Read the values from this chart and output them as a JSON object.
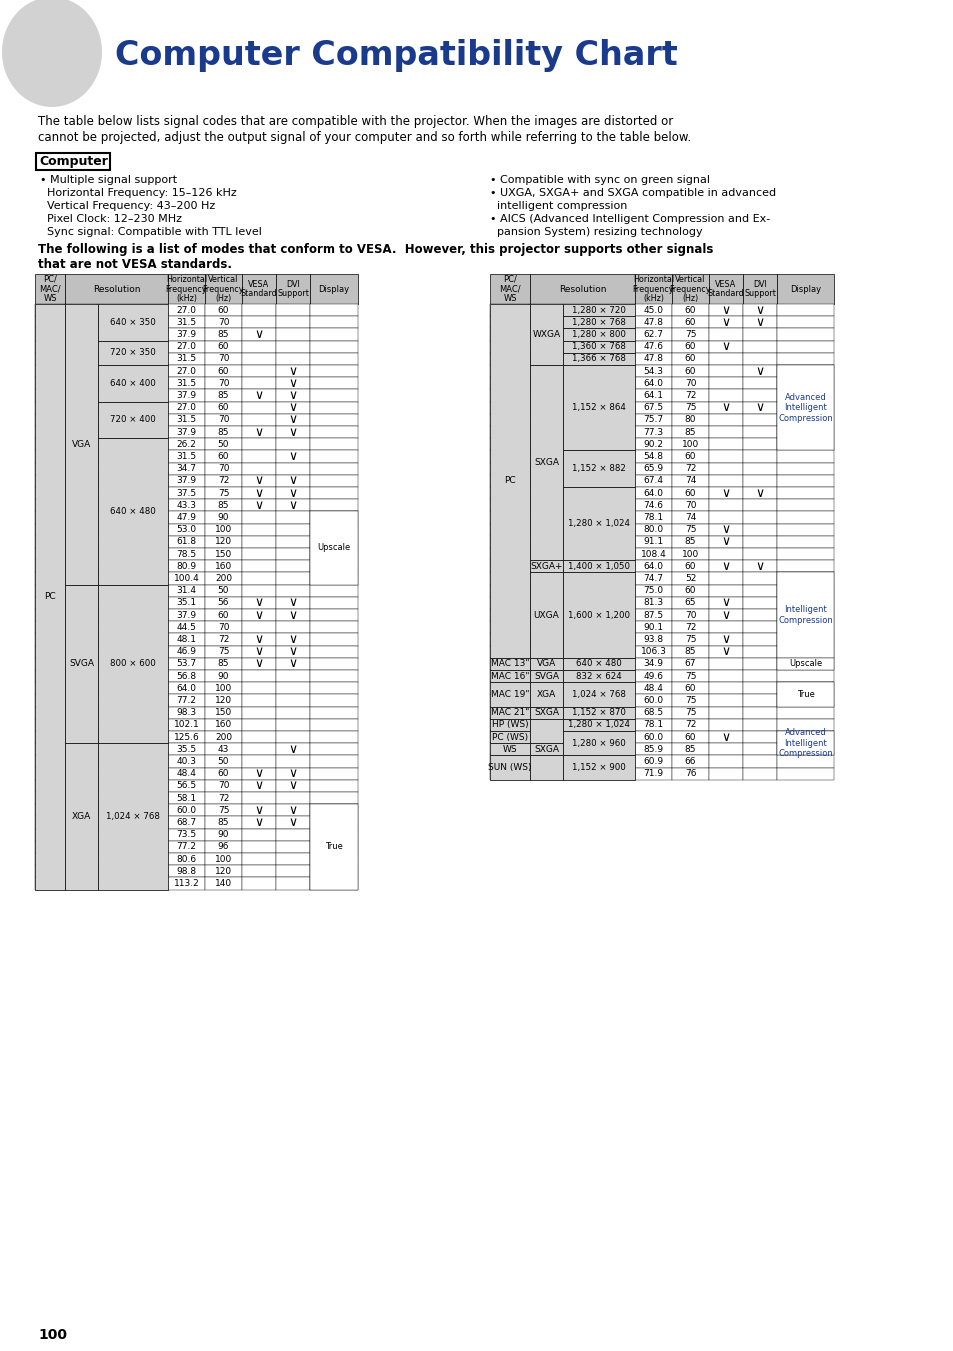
{
  "title": "Computer Compatibility Chart",
  "title_color": "#1a3a8c",
  "intro_text1": "The table below lists signal codes that are compatible with the projector. When the images are distorted or",
  "intro_text2": "cannot be projected, adjust the output signal of your computer and so forth while referring to the table below.",
  "computer_label": "Computer",
  "bullet_left": [
    "• Multiple signal support",
    "  Horizontal Frequency: 15–126 kHz",
    "  Vertical Frequency: 43–200 Hz",
    "  Pixel Clock: 12–230 MHz",
    "  Sync signal: Compatible with TTL level"
  ],
  "bullet_right": [
    "• Compatible with sync on green signal",
    "• UXGA, SXGA+ and SXGA compatible in advanced",
    "  intelligent compression",
    "• AICS (Advanced Intelligent Compression and Ex-",
    "  pansion System) resizing technology"
  ],
  "vesa_note1": "The following is a list of modes that conform to VESA.  However, this projector supports other signals",
  "vesa_note2": "that are not VESA standards.",
  "page_num": "100",
  "header_bg": "#c0c0c0",
  "gray_bg": "#d8d8d8",
  "check": "✓",
  "left_rows": [
    [
      "PC",
      "VGA",
      "640 × 350",
      "27.0",
      "60",
      "",
      ""
    ],
    [
      "PC",
      "VGA",
      "640 × 350",
      "31.5",
      "70",
      "",
      ""
    ],
    [
      "PC",
      "VGA",
      "640 × 350",
      "37.9",
      "85",
      "V",
      ""
    ],
    [
      "PC",
      "VGA",
      "720 × 350",
      "27.0",
      "60",
      "",
      ""
    ],
    [
      "PC",
      "VGA",
      "720 × 350",
      "31.5",
      "70",
      "",
      ""
    ],
    [
      "PC",
      "VGA",
      "640 × 400",
      "27.0",
      "60",
      "",
      "V"
    ],
    [
      "PC",
      "VGA",
      "640 × 400",
      "31.5",
      "70",
      "",
      "V"
    ],
    [
      "PC",
      "VGA",
      "640 × 400",
      "37.9",
      "85",
      "V",
      "V"
    ],
    [
      "PC",
      "VGA",
      "720 × 400",
      "27.0",
      "60",
      "",
      "V"
    ],
    [
      "PC",
      "VGA",
      "720 × 400",
      "31.5",
      "70",
      "",
      "V"
    ],
    [
      "PC",
      "VGA",
      "720 × 400",
      "37.9",
      "85",
      "V",
      "V"
    ],
    [
      "PC",
      "VGA",
      "640 × 480",
      "26.2",
      "50",
      "",
      ""
    ],
    [
      "PC",
      "VGA",
      "640 × 480",
      "31.5",
      "60",
      "",
      "V"
    ],
    [
      "PC",
      "VGA",
      "640 × 480",
      "34.7",
      "70",
      "",
      ""
    ],
    [
      "PC",
      "VGA",
      "640 × 480",
      "37.9",
      "72",
      "V",
      "V"
    ],
    [
      "PC",
      "VGA",
      "640 × 480",
      "37.5",
      "75",
      "V",
      "V"
    ],
    [
      "PC",
      "VGA",
      "640 × 480",
      "43.3",
      "85",
      "V",
      "V"
    ],
    [
      "PC",
      "VGA",
      "640 × 480",
      "47.9",
      "90",
      "",
      ""
    ],
    [
      "PC",
      "VGA",
      "640 × 480",
      "53.0",
      "100",
      "",
      ""
    ],
    [
      "PC",
      "VGA",
      "640 × 480",
      "61.8",
      "120",
      "",
      ""
    ],
    [
      "PC",
      "VGA",
      "640 × 480",
      "78.5",
      "150",
      "",
      ""
    ],
    [
      "PC",
      "VGA",
      "640 × 480",
      "80.9",
      "160",
      "",
      ""
    ],
    [
      "PC",
      "VGA",
      "640 × 480",
      "100.4",
      "200",
      "",
      ""
    ],
    [
      "PC",
      "SVGA",
      "800 × 600",
      "31.4",
      "50",
      "",
      ""
    ],
    [
      "PC",
      "SVGA",
      "800 × 600",
      "35.1",
      "56",
      "V",
      "V"
    ],
    [
      "PC",
      "SVGA",
      "800 × 600",
      "37.9",
      "60",
      "V",
      "V"
    ],
    [
      "PC",
      "SVGA",
      "800 × 600",
      "44.5",
      "70",
      "",
      ""
    ],
    [
      "PC",
      "SVGA",
      "800 × 600",
      "48.1",
      "72",
      "V",
      "V"
    ],
    [
      "PC",
      "SVGA",
      "800 × 600",
      "46.9",
      "75",
      "V",
      "V"
    ],
    [
      "PC",
      "SVGA",
      "800 × 600",
      "53.7",
      "85",
      "V",
      "V"
    ],
    [
      "PC",
      "SVGA",
      "800 × 600",
      "56.8",
      "90",
      "",
      ""
    ],
    [
      "PC",
      "SVGA",
      "800 × 600",
      "64.0",
      "100",
      "",
      ""
    ],
    [
      "PC",
      "SVGA",
      "800 × 600",
      "77.2",
      "120",
      "",
      ""
    ],
    [
      "PC",
      "SVGA",
      "800 × 600",
      "98.3",
      "150",
      "",
      ""
    ],
    [
      "PC",
      "SVGA",
      "800 × 600",
      "102.1",
      "160",
      "",
      ""
    ],
    [
      "PC",
      "SVGA",
      "800 × 600",
      "125.6",
      "200",
      "",
      ""
    ],
    [
      "PC",
      "XGA",
      "1,024 × 768",
      "35.5",
      "43",
      "",
      "V"
    ],
    [
      "PC",
      "XGA",
      "1,024 × 768",
      "40.3",
      "50",
      "",
      ""
    ],
    [
      "PC",
      "XGA",
      "1,024 × 768",
      "48.4",
      "60",
      "V",
      "V"
    ],
    [
      "PC",
      "XGA",
      "1,024 × 768",
      "56.5",
      "70",
      "V",
      "V"
    ],
    [
      "PC",
      "XGA",
      "1,024 × 768",
      "58.1",
      "72",
      "",
      ""
    ],
    [
      "PC",
      "XGA",
      "1,024 × 768",
      "60.0",
      "75",
      "V",
      "V"
    ],
    [
      "PC",
      "XGA",
      "1,024 × 768",
      "68.7",
      "85",
      "V",
      "V"
    ],
    [
      "PC",
      "XGA",
      "1,024 × 768",
      "73.5",
      "90",
      "",
      ""
    ],
    [
      "PC",
      "XGA",
      "1,024 × 768",
      "77.2",
      "96",
      "",
      ""
    ],
    [
      "PC",
      "XGA",
      "1,024 × 768",
      "80.6",
      "100",
      "",
      ""
    ],
    [
      "PC",
      "XGA",
      "1,024 × 768",
      "98.8",
      "120",
      "",
      ""
    ],
    [
      "PC",
      "XGA",
      "1,024 × 768",
      "113.2",
      "140",
      "",
      ""
    ]
  ],
  "left_display": {
    "17": "Upscale",
    "41": "True"
  },
  "right_rows": [
    [
      "PC",
      "WXGA",
      "1,280 × 720",
      "45.0",
      "60",
      "V",
      "V"
    ],
    [
      "PC",
      "WXGA",
      "1,280 × 768",
      "47.8",
      "60",
      "V",
      "V"
    ],
    [
      "PC",
      "WXGA",
      "1,280 × 800",
      "62.7",
      "75",
      "",
      ""
    ],
    [
      "PC",
      "WXGA",
      "1,360 × 768",
      "47.6",
      "60",
      "V",
      ""
    ],
    [
      "PC",
      "WXGA",
      "1,366 × 768",
      "47.8",
      "60",
      "",
      ""
    ],
    [
      "PC",
      "SXGA",
      "1,152 × 864",
      "54.3",
      "60",
      "",
      "V"
    ],
    [
      "PC",
      "SXGA",
      "1,152 × 864",
      "64.0",
      "70",
      "",
      ""
    ],
    [
      "PC",
      "SXGA",
      "1,152 × 864",
      "64.1",
      "72",
      "",
      ""
    ],
    [
      "PC",
      "SXGA",
      "1,152 × 864",
      "67.5",
      "75",
      "V",
      "V"
    ],
    [
      "PC",
      "SXGA",
      "1,152 × 864",
      "75.7",
      "80",
      "",
      ""
    ],
    [
      "PC",
      "SXGA",
      "1,152 × 864",
      "77.3",
      "85",
      "",
      ""
    ],
    [
      "PC",
      "SXGA",
      "1,152 × 864",
      "90.2",
      "100",
      "",
      ""
    ],
    [
      "PC",
      "SXGA",
      "1,152 × 882",
      "54.8",
      "60",
      "",
      ""
    ],
    [
      "PC",
      "SXGA",
      "1,152 × 882",
      "65.9",
      "72",
      "",
      ""
    ],
    [
      "PC",
      "SXGA",
      "1,152 × 882",
      "67.4",
      "74",
      "",
      ""
    ],
    [
      "PC",
      "SXGA",
      "1,280 × 1,024",
      "64.0",
      "60",
      "V",
      "V"
    ],
    [
      "PC",
      "SXGA",
      "1,280 × 1,024",
      "74.6",
      "70",
      "",
      ""
    ],
    [
      "PC",
      "SXGA",
      "1,280 × 1,024",
      "78.1",
      "74",
      "",
      ""
    ],
    [
      "PC",
      "SXGA",
      "1,280 × 1,024",
      "80.0",
      "75",
      "V",
      ""
    ],
    [
      "PC",
      "SXGA",
      "1,280 × 1,024",
      "91.1",
      "85",
      "V",
      ""
    ],
    [
      "PC",
      "SXGA",
      "1,280 × 1,024",
      "108.4",
      "100",
      "",
      ""
    ],
    [
      "PC",
      "SXGA+",
      "1,400 × 1,050",
      "64.0",
      "60",
      "V",
      "V"
    ],
    [
      "PC",
      "UXGA",
      "1,600 × 1,200",
      "74.7",
      "52",
      "",
      ""
    ],
    [
      "PC",
      "UXGA",
      "1,600 × 1,200",
      "75.0",
      "60",
      "",
      ""
    ],
    [
      "PC",
      "UXGA",
      "1,600 × 1,200",
      "81.3",
      "65",
      "V",
      ""
    ],
    [
      "PC",
      "UXGA",
      "1,600 × 1,200",
      "87.5",
      "70",
      "V",
      ""
    ],
    [
      "PC",
      "UXGA",
      "1,600 × 1,200",
      "90.1",
      "72",
      "",
      ""
    ],
    [
      "PC",
      "UXGA",
      "1,600 × 1,200",
      "93.8",
      "75",
      "V",
      ""
    ],
    [
      "PC",
      "UXGA",
      "1,600 × 1,200",
      "106.3",
      "85",
      "V",
      ""
    ],
    [
      "MAC 13\"",
      "VGA",
      "640 × 480",
      "34.9",
      "67",
      "",
      ""
    ],
    [
      "MAC 16\"",
      "SVGA",
      "832 × 624",
      "49.6",
      "75",
      "",
      ""
    ],
    [
      "MAC 19\"",
      "XGA",
      "1,024 × 768",
      "48.4",
      "60",
      "",
      ""
    ],
    [
      "MAC 19\"",
      "XGA",
      "1,024 × 768",
      "60.0",
      "75",
      "",
      ""
    ],
    [
      "MAC 21\"",
      "SXGA",
      "1,152 × 870",
      "68.5",
      "75",
      "",
      ""
    ],
    [
      "HP (WS)",
      "",
      "1,280 × 1,024",
      "78.1",
      "72",
      "",
      ""
    ],
    [
      "PC (WS)",
      "",
      "1,280 × 960",
      "60.0",
      "60",
      "V",
      ""
    ],
    [
      "WS",
      "SXGA",
      "1,280 × 960",
      "85.9",
      "85",
      "",
      ""
    ],
    [
      "SUN (WS)",
      "",
      "1,152 × 900",
      "60.9",
      "66",
      "",
      ""
    ],
    [
      "SUN (WS)",
      "",
      "1,152 × 900",
      "71.9",
      "76",
      "",
      ""
    ]
  ],
  "right_display": {
    "adv_rows": [
      5,
      11
    ],
    "adv_label": "Advanced\nIntelligent\nCompression",
    "adv_color": "#1a3a8c",
    "int_rows": [
      22,
      28
    ],
    "int_label": "Intelligent\nCompression",
    "int_color": "#1a3a8c",
    "upscale_row": 29,
    "upscale_label": "Upscale",
    "true_rows": [
      31,
      32
    ],
    "true_label": "True",
    "adv2_rows": [
      34,
      36
    ],
    "adv2_label": "Advanced\nIntelligent\nCompression",
    "adv2_color": "#1a3a8c"
  }
}
